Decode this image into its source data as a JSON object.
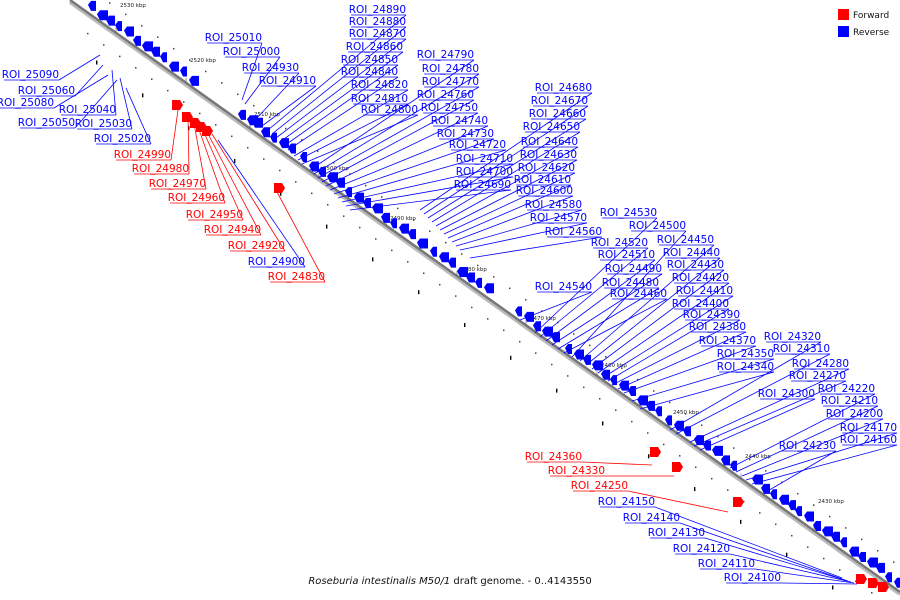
{
  "caption": {
    "organism": "Roseburia intestinalis M50/1",
    "rest": " draft genome. - 0..4143550"
  },
  "legend": [
    {
      "label": "Forward",
      "color": "#ff0000"
    },
    {
      "label": "Reverse",
      "color": "#0000ff"
    }
  ],
  "colors": {
    "forward": "#ff0000",
    "reverse": "#0000ff",
    "axis": "#777777"
  },
  "ticks": [
    "2530 kbp",
    "2520 kbp",
    "2510 kbp",
    "2500 kbp",
    "2490 kbp",
    "2480 kbp",
    "2470 kbp",
    "2460 kbp",
    "2450 kbp",
    "2440 kbp",
    "2430 kbp"
  ],
  "labels": [
    {
      "text": "ROI_25090",
      "strand": "reverse"
    },
    {
      "text": "ROI_25060",
      "strand": "reverse"
    },
    {
      "text": "ROI_25080",
      "strand": "reverse"
    },
    {
      "text": "ROI_25040",
      "strand": "reverse"
    },
    {
      "text": "ROI_25050",
      "strand": "reverse"
    },
    {
      "text": "ROI_25030",
      "strand": "reverse"
    },
    {
      "text": "ROI_25020",
      "strand": "reverse"
    },
    {
      "text": "ROI_24990",
      "strand": "forward"
    },
    {
      "text": "ROI_24980",
      "strand": "forward"
    },
    {
      "text": "ROI_24970",
      "strand": "forward"
    },
    {
      "text": "ROI_24960",
      "strand": "forward"
    },
    {
      "text": "ROI_24950",
      "strand": "forward"
    },
    {
      "text": "ROI_24940",
      "strand": "forward"
    },
    {
      "text": "ROI_24920",
      "strand": "forward"
    },
    {
      "text": "ROI_24900",
      "strand": "reverse"
    },
    {
      "text": "ROI_24830",
      "strand": "forward"
    },
    {
      "text": "ROI_25010",
      "strand": "reverse"
    },
    {
      "text": "ROI_25000",
      "strand": "reverse"
    },
    {
      "text": "ROI_24930",
      "strand": "reverse"
    },
    {
      "text": "ROI_24910",
      "strand": "reverse"
    },
    {
      "text": "ROI_24890",
      "strand": "reverse"
    },
    {
      "text": "ROI_24880",
      "strand": "reverse"
    },
    {
      "text": "ROI_24870",
      "strand": "reverse"
    },
    {
      "text": "ROI_24860",
      "strand": "reverse"
    },
    {
      "text": "ROI_24850",
      "strand": "reverse"
    },
    {
      "text": "ROI_24840",
      "strand": "reverse"
    },
    {
      "text": "ROI_24820",
      "strand": "reverse"
    },
    {
      "text": "ROI_24810",
      "strand": "reverse"
    },
    {
      "text": "ROI_24800",
      "strand": "reverse"
    },
    {
      "text": "ROI_24790",
      "strand": "reverse"
    },
    {
      "text": "ROI_24780",
      "strand": "reverse"
    },
    {
      "text": "ROI_24770",
      "strand": "reverse"
    },
    {
      "text": "ROI_24760",
      "strand": "reverse"
    },
    {
      "text": "ROI_24750",
      "strand": "reverse"
    },
    {
      "text": "ROI_24740",
      "strand": "reverse"
    },
    {
      "text": "ROI_24730",
      "strand": "reverse"
    },
    {
      "text": "ROI_24720",
      "strand": "reverse"
    },
    {
      "text": "ROI_24710",
      "strand": "reverse"
    },
    {
      "text": "ROI_24700",
      "strand": "reverse"
    },
    {
      "text": "ROI_24690",
      "strand": "reverse"
    },
    {
      "text": "ROI_24680",
      "strand": "reverse"
    },
    {
      "text": "ROI_24670",
      "strand": "reverse"
    },
    {
      "text": "ROI_24660",
      "strand": "reverse"
    },
    {
      "text": "ROI_24650",
      "strand": "reverse"
    },
    {
      "text": "ROI_24640",
      "strand": "reverse"
    },
    {
      "text": "ROI_24630",
      "strand": "reverse"
    },
    {
      "text": "ROI_24620",
      "strand": "reverse"
    },
    {
      "text": "ROI_24610",
      "strand": "reverse"
    },
    {
      "text": "ROI_24600",
      "strand": "reverse"
    },
    {
      "text": "ROI_24580",
      "strand": "reverse"
    },
    {
      "text": "ROI_24570",
      "strand": "reverse"
    },
    {
      "text": "ROI_24560",
      "strand": "reverse"
    },
    {
      "text": "ROI_24540",
      "strand": "reverse"
    },
    {
      "text": "ROI_24530",
      "strand": "reverse"
    },
    {
      "text": "ROI_24520",
      "strand": "reverse"
    },
    {
      "text": "ROI_24510",
      "strand": "reverse"
    },
    {
      "text": "ROI_24490",
      "strand": "reverse"
    },
    {
      "text": "ROI_24480",
      "strand": "reverse"
    },
    {
      "text": "ROI_24460",
      "strand": "reverse"
    },
    {
      "text": "ROI_24500",
      "strand": "reverse"
    },
    {
      "text": "ROI_24450",
      "strand": "reverse"
    },
    {
      "text": "ROI_24440",
      "strand": "reverse"
    },
    {
      "text": "ROI_24430",
      "strand": "reverse"
    },
    {
      "text": "ROI_24420",
      "strand": "reverse"
    },
    {
      "text": "ROI_24410",
      "strand": "reverse"
    },
    {
      "text": "ROI_24400",
      "strand": "reverse"
    },
    {
      "text": "ROI_24390",
      "strand": "reverse"
    },
    {
      "text": "ROI_24380",
      "strand": "reverse"
    },
    {
      "text": "ROI_24370",
      "strand": "reverse"
    },
    {
      "text": "ROI_24350",
      "strand": "reverse"
    },
    {
      "text": "ROI_24340",
      "strand": "reverse"
    },
    {
      "text": "ROI_24320",
      "strand": "reverse"
    },
    {
      "text": "ROI_24310",
      "strand": "reverse"
    },
    {
      "text": "ROI_24280",
      "strand": "reverse"
    },
    {
      "text": "ROI_24270",
      "strand": "reverse"
    },
    {
      "text": "ROI_24300",
      "strand": "reverse"
    },
    {
      "text": "ROI_24220",
      "strand": "reverse"
    },
    {
      "text": "ROI_24210",
      "strand": "reverse"
    },
    {
      "text": "ROI_24200",
      "strand": "reverse"
    },
    {
      "text": "ROI_24170",
      "strand": "reverse"
    },
    {
      "text": "ROI_24160",
      "strand": "reverse"
    },
    {
      "text": "ROI_24230",
      "strand": "reverse"
    },
    {
      "text": "ROI_24360",
      "strand": "forward"
    },
    {
      "text": "ROI_24330",
      "strand": "forward"
    },
    {
      "text": "ROI_24250",
      "strand": "forward"
    },
    {
      "text": "ROI_24150",
      "strand": "reverse"
    },
    {
      "text": "ROI_24140",
      "strand": "reverse"
    },
    {
      "text": "ROI_24130",
      "strand": "reverse"
    },
    {
      "text": "ROI_24120",
      "strand": "reverse"
    },
    {
      "text": "ROI_24110",
      "strand": "reverse"
    },
    {
      "text": "ROI_24100",
      "strand": "reverse"
    }
  ]
}
